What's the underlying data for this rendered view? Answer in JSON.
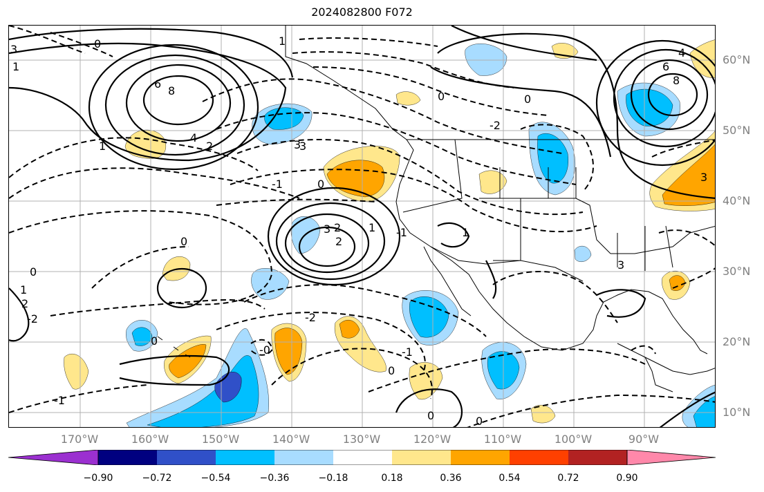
{
  "title": "2024082800 F072",
  "lat_labels": [
    "60°N",
    "50°N",
    "40°N",
    "30°N",
    "20°N",
    "10°N"
  ],
  "lon_labels": [
    "170°W",
    "160°W",
    "150°W",
    "140°W",
    "130°W",
    "120°W",
    "110°W",
    "100°W",
    "90°W"
  ],
  "colorbar": {
    "tick_labels": [
      "−0.90",
      "−0.72",
      "−0.54",
      "−0.36",
      "−0.18",
      "0.18",
      "0.36",
      "0.54",
      "0.72",
      "0.90"
    ],
    "colors": [
      "#9b30d0",
      "#000080",
      "#3050c8",
      "#00bfff",
      "#a8dcff",
      "#ffffff",
      "#ffe78c",
      "#ffa500",
      "#ff4000",
      "#b22222",
      "#ff88aa"
    ]
  },
  "contour_labels": [
    "0",
    "1",
    "2",
    "3",
    "4",
    "6",
    "8",
    "0",
    "1",
    "2",
    "3",
    "-2",
    "-1",
    "0",
    "1",
    "3",
    "4",
    "6",
    "8",
    "0",
    "2",
    "3",
    "-1",
    "-2",
    "1",
    "2",
    "3",
    "0",
    "-1",
    "0",
    "-2",
    "-0",
    "0",
    "-1",
    "0",
    "0",
    "0",
    "1",
    "3",
    "1"
  ]
}
